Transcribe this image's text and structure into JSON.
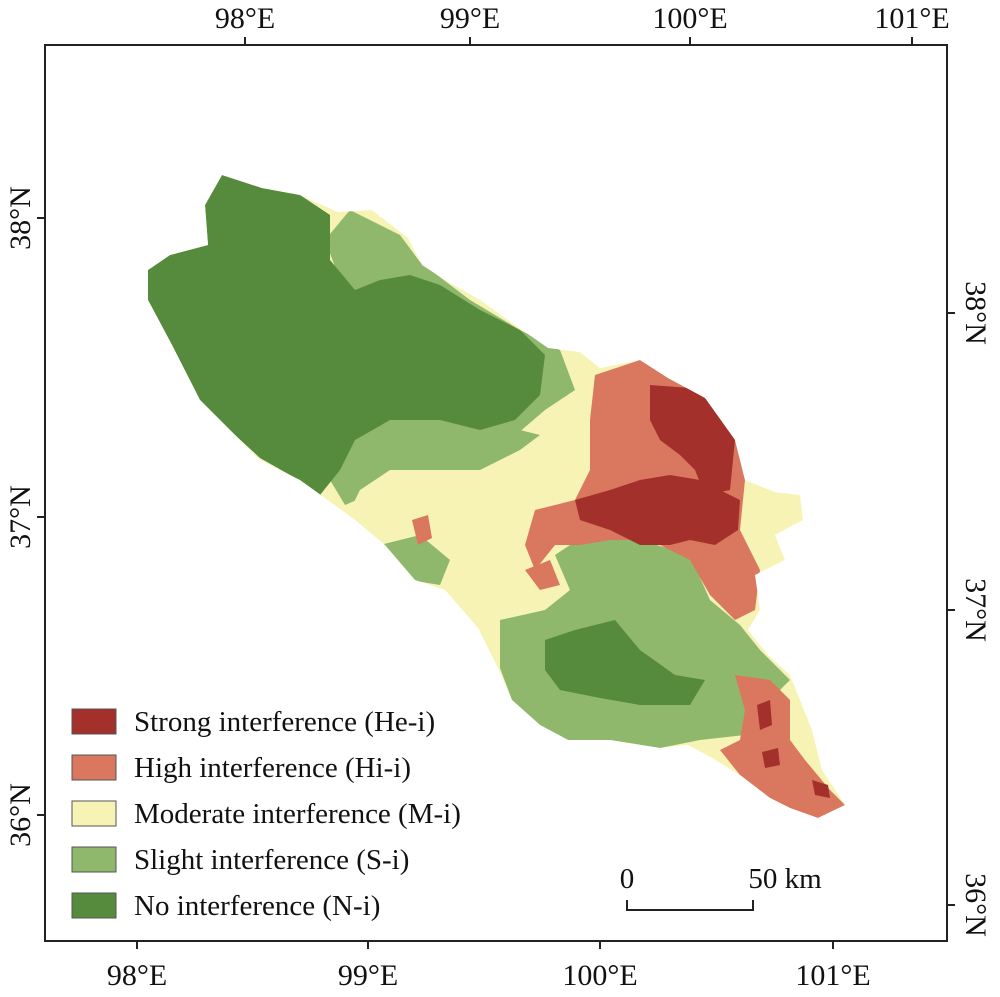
{
  "map": {
    "top_ticks": [
      "98°E",
      "99°E",
      "100°E",
      "101°E"
    ],
    "bottom_ticks": [
      "98°E",
      "99°E",
      "100°E",
      "101°E"
    ],
    "left_ticks": [
      "38°N",
      "37°N",
      "36°N"
    ],
    "right_ticks": [
      "38°N",
      "37°N",
      "36°N"
    ],
    "colors": {
      "strong": "#a3302b",
      "high": "#d9775f",
      "moderate": "#f7f3b5",
      "slight": "#8fb86d",
      "none": "#568a3c"
    }
  },
  "legend": {
    "items": [
      {
        "label": "Strong interference (He-i)",
        "color": "#a3302b"
      },
      {
        "label": "High interference (Hi-i)",
        "color": "#d9775f"
      },
      {
        "label": "Moderate interference (M-i)",
        "color": "#f7f3b5"
      },
      {
        "label": "Slight interference (S-i)",
        "color": "#8fb86d"
      },
      {
        "label": "No interference (N-i)",
        "color": "#568a3c"
      }
    ]
  },
  "scalebar": {
    "start": "0",
    "end": "50 km"
  }
}
